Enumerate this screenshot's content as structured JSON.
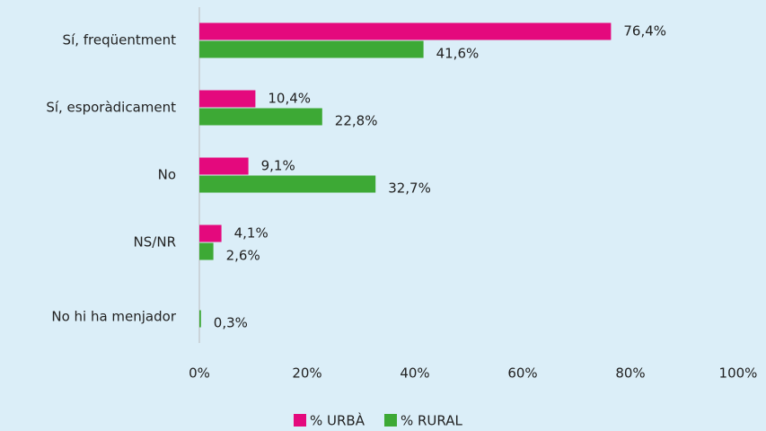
{
  "chart_data": {
    "type": "hbar",
    "categories": [
      "Sí, freqüentment",
      "Sí, esporàdicament",
      "No",
      "NS/NR",
      "No hi ha menjador"
    ],
    "series": [
      {
        "name": "% URBÀ",
        "color": "#e4097d",
        "values": [
          76.4,
          10.4,
          9.1,
          4.1,
          null
        ],
        "value_labels": [
          "76,4%",
          "10,4%",
          "9,1%",
          "4,1%",
          null
        ]
      },
      {
        "name": "% RURAL",
        "color": "#3da935",
        "values": [
          41.6,
          22.8,
          32.7,
          2.6,
          0.3
        ],
        "value_labels": [
          "41,6%",
          "22,8%",
          "32,7%",
          "2,6%",
          "0,3%"
        ]
      }
    ],
    "xlim": [
      0,
      100
    ],
    "xticks": [
      {
        "value": 0,
        "label": "0%"
      },
      {
        "value": 20,
        "label": "20%"
      },
      {
        "value": 40,
        "label": "40%"
      },
      {
        "value": 60,
        "label": "60%"
      },
      {
        "value": 80,
        "label": "80%"
      },
      {
        "value": 100,
        "label": "100%"
      }
    ],
    "legend": "bottom"
  }
}
